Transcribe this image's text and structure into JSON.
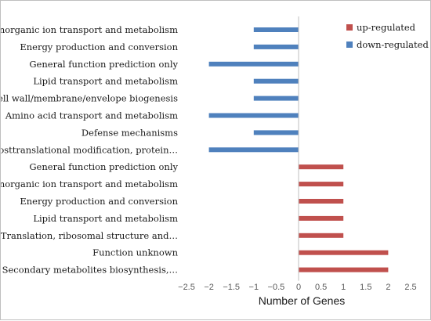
{
  "chart_data": {
    "type": "bar",
    "orientation": "horizontal",
    "title": "",
    "xlabel": "Number of Genes",
    "ylabel": "",
    "xlim": [
      -2.5,
      2.5
    ],
    "xticks": [
      "−2.5",
      "−2",
      "−1.5",
      "−1",
      "−0.5",
      "0",
      "0.5",
      "1",
      "1.5",
      "2",
      "2.5"
    ],
    "xtick_values": [
      -2.5,
      -2,
      -1.5,
      -1,
      -0.5,
      0,
      0.5,
      1,
      1.5,
      2,
      2.5
    ],
    "grid": false,
    "legend_position": "top-right",
    "categories": [
      "Inorganic ion transport and metabolism",
      "Energy production and conversion",
      "General function prediction only",
      "Lipid transport and metabolism",
      "Cell wall/membrane/envelope biogenesis",
      "Amino acid transport and metabolism",
      "Defense mechanisms",
      "Posttranslational modification, protein…",
      "General function prediction only",
      "Inorganic ion transport and metabolism",
      "Energy production and conversion",
      "Lipid transport and metabolism",
      "Translation, ribosomal structure and…",
      "Function unknown",
      "Secondary metabolites biosynthesis,…"
    ],
    "series": [
      {
        "name": "up-regulated",
        "color": "#c0504d",
        "values": [
          null,
          null,
          null,
          null,
          null,
          null,
          null,
          null,
          1,
          1,
          1,
          1,
          1,
          2,
          2
        ]
      },
      {
        "name": "down-regulated",
        "color": "#4f81bd",
        "values": [
          -1,
          -1,
          -2,
          -1,
          -1,
          -2,
          -1,
          -2,
          null,
          null,
          null,
          null,
          null,
          null,
          null
        ]
      }
    ]
  }
}
